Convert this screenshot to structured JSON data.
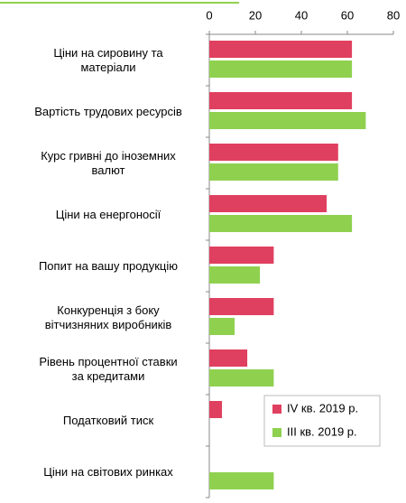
{
  "chart_data": {
    "type": "barh",
    "categories": [
      "Ціни на сировину та\nматеріали",
      "Вартість трудових ресурсів",
      "Курс гривні до іноземних\nвалют",
      "Ціни на енергоносії",
      "Попит на вашу продукцію",
      "Конкуренція з боку\nвітчизняних виробників",
      "Рівень процентної ставки\nза кредитами",
      "Податковий тиск",
      "Ціни на світових ринках"
    ],
    "series": [
      {
        "name": "IV кв. 2019 р.",
        "color": "#e0405f",
        "values": [
          62,
          62,
          56,
          51,
          28,
          28,
          16.5,
          5.5,
          0
        ]
      },
      {
        "name": "III кв. 2019 р.",
        "color": "#8fd14f",
        "values": [
          62,
          68,
          56,
          62,
          22,
          11,
          28,
          0,
          28
        ]
      }
    ],
    "xlim": [
      0,
      80
    ],
    "xticks": [
      0,
      20,
      40,
      60,
      80
    ],
    "legend": "lower right"
  }
}
